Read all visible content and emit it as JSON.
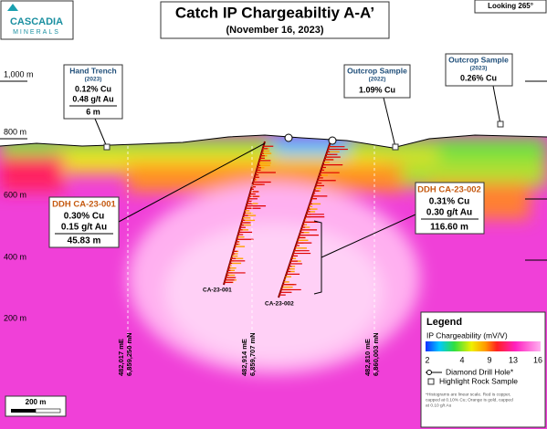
{
  "logo": {
    "name": "CASCADIA",
    "sub": "MINERALS"
  },
  "header": {
    "title": "Catch IP Chargeabiltiy A-A’",
    "subtitle": "(November 16, 2023)",
    "view": "Looking 265°"
  },
  "elevations": [
    "1,000 m",
    "800 m",
    "600 m",
    "400 m",
    "200 m"
  ],
  "samples": [
    {
      "title": "Hand Trench",
      "year": "(2023)",
      "lines": [
        "0.12% Cu",
        "0.48 g/t Au",
        "6 m"
      ]
    },
    {
      "title": "Outcrop Sample",
      "year": "(2022)",
      "lines": [
        "1.09% Cu"
      ]
    },
    {
      "title": "Outcrop Sample",
      "year": "(2023)",
      "lines": [
        "0.26% Cu"
      ]
    }
  ],
  "holes": [
    {
      "title": "DDH CA-23-001",
      "lines": [
        "0.30% Cu",
        "0.15 g/t Au",
        "45.83 m"
      ],
      "label": "CA-23-001"
    },
    {
      "title": "DDH CA-23-002",
      "lines": [
        "0.31% Cu",
        "0.30 g/t Au",
        "116.60 m"
      ],
      "label": "CA-23-002"
    }
  ],
  "coordinates": [
    [
      "482,017 mE",
      "6,859,250 mN"
    ],
    [
      "482,914 mE",
      "6,859,707 mN"
    ],
    [
      "482,810 mE",
      "6,860,003 mN"
    ]
  ],
  "scale": "200 m",
  "legend": {
    "title": "Legend",
    "colorbar_title": "IP Chargeability (mV/V)",
    "ticks": [
      "2",
      "4",
      "9",
      "13",
      "16"
    ],
    "items": [
      "Diamond Drill Hole*",
      "Highlight Rock Sample"
    ],
    "note": [
      "*Histograms are linear scale. Red is copper,",
      "capped at 0.10% Cu; Orange is gold, capped",
      "at 0.10 g/t Au"
    ]
  }
}
